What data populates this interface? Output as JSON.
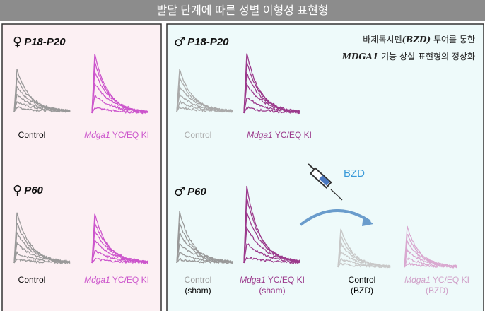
{
  "header": {
    "title": "발달 단계에 따른 성별 이형성 표현형"
  },
  "female_panel": {
    "symbol": "♀",
    "groups": [
      {
        "stage": "P18-P20",
        "control": "Control",
        "gene": "Mdga1",
        "mutant": " YC/EQ KI"
      },
      {
        "stage": "P60",
        "control": "Control",
        "gene": "Mdga1",
        "mutant": " YC/EQ KI"
      }
    ]
  },
  "male_panel": {
    "symbol": "♂",
    "note": {
      "line1_a": "바제독시펜",
      "line1_b": "(BZD)",
      "line1_c": " 투여를 통한",
      "line2_a": "MDGA1",
      "line2_b": " 기능 상실 표현형의 정상화"
    },
    "young": {
      "stage": "P18-P20",
      "control": "Control",
      "gene": "Mdga1",
      "mutant": " YC/EQ KI"
    },
    "adult": {
      "stage": "P60",
      "drug": "BZD",
      "control_sham": [
        "Control",
        "(sham)"
      ],
      "mutant_sham": {
        "gene": "Mdga1",
        "mutant": " YC/EQ KI",
        "sub": "(sham)"
      },
      "control_bzd": [
        "Control",
        "(BZD)"
      ],
      "mutant_bzd": {
        "gene": "Mdga1",
        "mutant": " YC/EQ KI",
        "sub": "(BZD)"
      }
    }
  }
}
